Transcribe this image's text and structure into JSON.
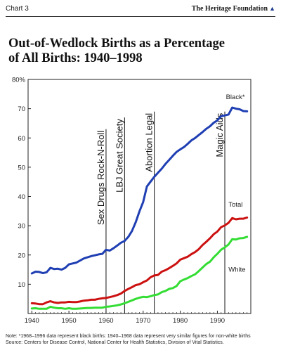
{
  "header": {
    "chart_label": "Chart 3",
    "brand": "The Heritage Foundation",
    "brand_icon": "liberty-bell-icon"
  },
  "chart_data": {
    "type": "line",
    "title": "Out-of-Wedlock Births as a Percentage of All Births: 1940–1998",
    "title_lines": [
      "Out-of-Wedlock Births as a Percentage",
      "of All Births: 1940–1998"
    ],
    "xlabel": "",
    "ylabel": "",
    "xlim": [
      1939,
      1999
    ],
    "ylim": [
      0,
      80
    ],
    "x_ticks": [
      1940,
      1950,
      1960,
      1970,
      1980,
      1990
    ],
    "y_ticks": [
      {
        "value": 10,
        "label": "10"
      },
      {
        "value": 20,
        "label": "20"
      },
      {
        "value": 30,
        "label": "30"
      },
      {
        "value": 40,
        "label": "40"
      },
      {
        "value": 50,
        "label": "50"
      },
      {
        "value": 60,
        "label": "60"
      },
      {
        "value": 70,
        "label": "70"
      },
      {
        "value": 80,
        "label": "80%"
      }
    ],
    "grid": false,
    "series": [
      {
        "name": "Black*",
        "color": "#1f3fb3",
        "x": [
          1940,
          1941,
          1942,
          1943,
          1944,
          1945,
          1946,
          1947,
          1948,
          1949,
          1950,
          1951,
          1952,
          1953,
          1954,
          1955,
          1956,
          1957,
          1958,
          1959,
          1960,
          1961,
          1962,
          1963,
          1964,
          1965,
          1966,
          1967,
          1968,
          1969,
          1970,
          1971,
          1972,
          1973,
          1974,
          1975,
          1976,
          1977,
          1978,
          1979,
          1980,
          1981,
          1982,
          1983,
          1984,
          1985,
          1986,
          1987,
          1988,
          1989,
          1990,
          1991,
          1992,
          1993,
          1994,
          1995,
          1996,
          1997,
          1998
        ],
        "values": [
          13.7,
          14.3,
          14.2,
          13.8,
          14.1,
          15.6,
          15.2,
          15.3,
          15.0,
          15.6,
          16.8,
          17.1,
          17.4,
          18.1,
          18.8,
          19.2,
          19.6,
          19.9,
          20.2,
          20.4,
          21.8,
          21.5,
          22.3,
          23.2,
          24.2,
          24.8,
          26.2,
          28.2,
          31.2,
          34.9,
          38.1,
          43.4,
          45.1,
          46.7,
          48.1,
          49.5,
          51.1,
          52.5,
          53.9,
          55.2,
          56.1,
          56.9,
          58.0,
          59.2,
          60.0,
          61.0,
          62.0,
          63.1,
          64.0,
          65.2,
          66.0,
          67.4,
          67.7,
          68.0,
          70.4,
          70.0,
          69.8,
          69.2,
          69.1
        ]
      },
      {
        "name": "Total",
        "color": "#cc1111",
        "x": [
          1940,
          1941,
          1942,
          1943,
          1944,
          1945,
          1946,
          1947,
          1948,
          1949,
          1950,
          1951,
          1952,
          1953,
          1954,
          1955,
          1956,
          1957,
          1958,
          1959,
          1960,
          1961,
          1962,
          1963,
          1964,
          1965,
          1966,
          1967,
          1968,
          1969,
          1970,
          1971,
          1972,
          1973,
          1974,
          1975,
          1976,
          1977,
          1978,
          1979,
          1980,
          1981,
          1982,
          1983,
          1984,
          1985,
          1986,
          1987,
          1988,
          1989,
          1990,
          1991,
          1992,
          1993,
          1994,
          1995,
          1996,
          1997,
          1998
        ],
        "values": [
          3.5,
          3.4,
          3.2,
          3.2,
          3.8,
          4.2,
          3.8,
          3.6,
          3.8,
          3.8,
          4.0,
          3.9,
          3.9,
          4.1,
          4.4,
          4.5,
          4.7,
          4.7,
          5.0,
          5.2,
          5.3,
          5.6,
          5.9,
          6.3,
          6.8,
          7.7,
          8.4,
          9.0,
          9.7,
          10.0,
          10.7,
          11.3,
          12.4,
          13.0,
          13.2,
          14.3,
          14.8,
          15.5,
          16.3,
          17.1,
          18.4,
          18.9,
          19.4,
          20.3,
          21.0,
          22.0,
          23.4,
          24.5,
          25.7,
          27.1,
          28.0,
          29.5,
          30.1,
          31.0,
          32.6,
          32.2,
          32.4,
          32.4,
          32.8
        ]
      },
      {
        "name": "White",
        "color": "#33dd33",
        "x": [
          1940,
          1941,
          1942,
          1943,
          1944,
          1945,
          1946,
          1947,
          1948,
          1949,
          1950,
          1951,
          1952,
          1953,
          1954,
          1955,
          1956,
          1957,
          1958,
          1959,
          1960,
          1961,
          1962,
          1963,
          1964,
          1965,
          1966,
          1967,
          1968,
          1969,
          1970,
          1971,
          1972,
          1973,
          1974,
          1975,
          1976,
          1977,
          1978,
          1979,
          1980,
          1981,
          1982,
          1983,
          1984,
          1985,
          1986,
          1987,
          1988,
          1989,
          1990,
          1991,
          1992,
          1993,
          1994,
          1995,
          1996,
          1997,
          1998
        ],
        "values": [
          1.7,
          1.8,
          1.6,
          1.6,
          1.6,
          2.3,
          2.0,
          1.8,
          1.8,
          1.6,
          1.8,
          1.6,
          1.6,
          1.7,
          1.8,
          1.9,
          1.9,
          2.0,
          2.0,
          2.0,
          2.3,
          2.4,
          2.6,
          2.8,
          3.1,
          3.5,
          4.0,
          4.5,
          5.0,
          5.4,
          5.7,
          5.6,
          5.9,
          6.3,
          6.5,
          7.3,
          7.7,
          8.4,
          8.7,
          9.4,
          11.0,
          11.6,
          12.1,
          12.8,
          13.4,
          14.5,
          15.7,
          16.9,
          17.7,
          19.2,
          20.4,
          21.8,
          22.6,
          23.6,
          25.4,
          25.3,
          25.7,
          25.8,
          26.2
        ]
      }
    ],
    "annotations": [
      {
        "x": 1960,
        "text": "Sex Drugs Rock-N-Roll",
        "y_top": 63
      },
      {
        "x": 1965,
        "text": "LBJ Great Society",
        "y_top": 67
      },
      {
        "x": 1973,
        "text": "Abortion Legal",
        "y_top": 69
      },
      {
        "x": 1992,
        "text": "Magic Aids",
        "y_top": 69
      }
    ],
    "series_labels": [
      {
        "series": "Black*",
        "text": "Black*",
        "x": 1992.3,
        "y": 73.3
      },
      {
        "series": "Total",
        "text": "Total",
        "x": 1993,
        "y": 36.5
      },
      {
        "series": "White",
        "text": "White",
        "x": 1993,
        "y": 14.3
      }
    ]
  },
  "footer": {
    "note": "Note: *1968–1996 data represent black births: 1940–1968 data represent very similar figures for non-white births",
    "source": "Source: Centers for Disease Control, National Center for Health Statistics, Division of Vital Statistics."
  }
}
